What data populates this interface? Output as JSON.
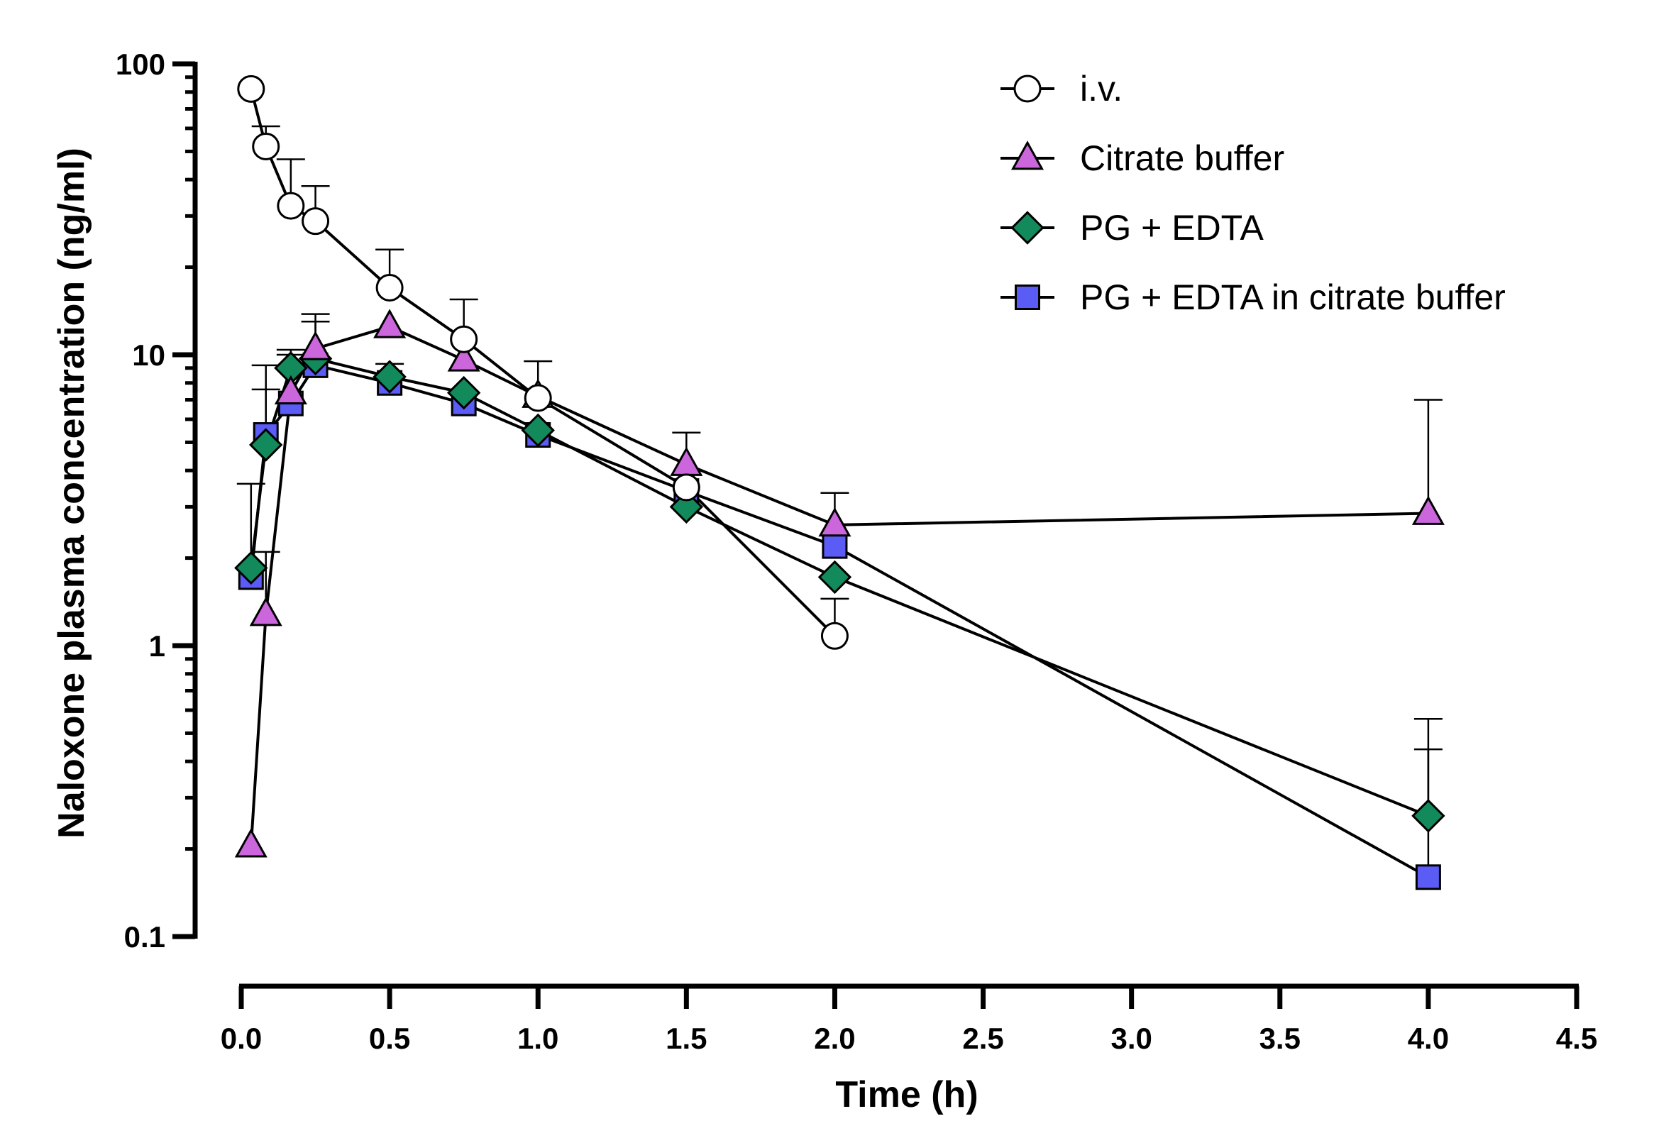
{
  "chart_data": {
    "type": "scatter",
    "title": "",
    "xlabel": "Time (h)",
    "ylabel": "Naloxone plasma concentration (ng/ml)",
    "xlim": [
      0.0,
      4.5
    ],
    "ylim": [
      0.1,
      100
    ],
    "yscale": "log",
    "x_ticks": [
      "0.0",
      "0.5",
      "1.0",
      "1.5",
      "2.0",
      "2.5",
      "3.0",
      "3.5",
      "4.0",
      "4.5"
    ],
    "y_ticks": [
      "0.1",
      "1",
      "10",
      "100"
    ],
    "legend_position": "top-right",
    "grid": false,
    "series": [
      {
        "name": "i.v.",
        "marker": "circle",
        "color": "#ffffff",
        "points": [
          {
            "x": 0.033,
            "y": 82.0,
            "err": null
          },
          {
            "x": 0.083,
            "y": 52.0,
            "err": 61.0
          },
          {
            "x": 0.167,
            "y": 32.5,
            "err": 47.0
          },
          {
            "x": 0.25,
            "y": 28.8,
            "err": 38.0
          },
          {
            "x": 0.5,
            "y": 17.0,
            "err": 23.0
          },
          {
            "x": 0.75,
            "y": 11.3,
            "err": 15.5
          },
          {
            "x": 1.0,
            "y": 7.1,
            "err": 9.5
          },
          {
            "x": 1.5,
            "y": 3.5,
            "err": null
          },
          {
            "x": 2.0,
            "y": 1.08,
            "err": 1.45
          }
        ]
      },
      {
        "name": "Citrate buffer",
        "marker": "triangle",
        "color": "#cc66dd",
        "points": [
          {
            "x": 0.033,
            "y": 0.205,
            "err": null
          },
          {
            "x": 0.083,
            "y": 1.28,
            "err": 2.1
          },
          {
            "x": 0.167,
            "y": 7.4,
            "err": 10.0
          },
          {
            "x": 0.25,
            "y": 10.5,
            "err": 13.8
          },
          {
            "x": 0.5,
            "y": 12.5,
            "err": null
          },
          {
            "x": 0.75,
            "y": 9.6,
            "err": null
          },
          {
            "x": 1.0,
            "y": 7.2,
            "err": null
          },
          {
            "x": 1.5,
            "y": 4.2,
            "err": 5.4
          },
          {
            "x": 2.0,
            "y": 2.6,
            "err": 3.35
          },
          {
            "x": 4.0,
            "y": 2.85,
            "err": 7.0
          }
        ]
      },
      {
        "name": "PG + EDTA",
        "marker": "diamond",
        "color": "#138a5c",
        "points": [
          {
            "x": 0.033,
            "y": 1.85,
            "err": 3.6
          },
          {
            "x": 0.083,
            "y": 4.9,
            "err": 9.2
          },
          {
            "x": 0.167,
            "y": 9.0,
            "err": 10.4
          },
          {
            "x": 0.25,
            "y": 9.7,
            "err": 13.0
          },
          {
            "x": 0.5,
            "y": 8.4,
            "err": 9.3
          },
          {
            "x": 0.75,
            "y": 7.4,
            "err": null
          },
          {
            "x": 1.0,
            "y": 5.5,
            "err": null
          },
          {
            "x": 1.5,
            "y": 3.0,
            "err": null
          },
          {
            "x": 2.0,
            "y": 1.72,
            "err": null
          },
          {
            "x": 4.0,
            "y": 0.26,
            "err": 0.56
          }
        ]
      },
      {
        "name": "PG + EDTA in citrate buffer",
        "marker": "square",
        "color": "#5b5bf5",
        "points": [
          {
            "x": 0.033,
            "y": 1.72,
            "err": null
          },
          {
            "x": 0.083,
            "y": 5.3,
            "err": 7.6
          },
          {
            "x": 0.167,
            "y": 6.8,
            "err": null
          },
          {
            "x": 0.25,
            "y": 9.2,
            "err": null
          },
          {
            "x": 0.5,
            "y": 8.0,
            "err": null
          },
          {
            "x": 0.75,
            "y": 6.8,
            "err": null
          },
          {
            "x": 1.0,
            "y": 5.3,
            "err": null
          },
          {
            "x": 1.5,
            "y": 3.4,
            "err": null
          },
          {
            "x": 2.0,
            "y": 2.2,
            "err": null
          },
          {
            "x": 4.0,
            "y": 0.16,
            "err": 0.44
          }
        ]
      }
    ]
  }
}
